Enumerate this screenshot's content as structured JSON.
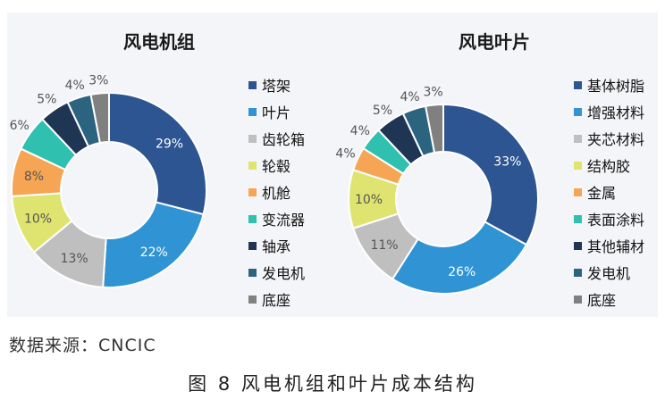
{
  "source_note": "数据来源：CNCIC",
  "figure_caption": "图 8  风电机组和叶片成本结构",
  "chart_data": [
    {
      "type": "pie",
      "donut": true,
      "title": "风电机组",
      "legend_position": "right",
      "categories": [
        "塔架",
        "叶片",
        "齿轮箱",
        "轮毂",
        "机舱",
        "变流器",
        "轴承",
        "发电机",
        "底座"
      ],
      "values": [
        29,
        22,
        13,
        10,
        8,
        6,
        5,
        4,
        3
      ],
      "labels": [
        "29%",
        "22%",
        "13%",
        "10%",
        "8%",
        "6%",
        "5%",
        "4%",
        "3%"
      ],
      "colors": [
        "#2d5591",
        "#2f93d4",
        "#bfbfbf",
        "#dfe36f",
        "#f5a553",
        "#2fc0b0",
        "#1f3554",
        "#2c6480",
        "#808080"
      ]
    },
    {
      "type": "pie",
      "donut": true,
      "title": "风电叶片",
      "legend_position": "right",
      "categories": [
        "基体树脂",
        "增强材料",
        "夹芯材料",
        "结构胶",
        "金属",
        "表面涂料",
        "其他辅材",
        "发电机",
        "底座"
      ],
      "values": [
        33,
        26,
        11,
        10,
        4,
        4,
        5,
        4,
        3
      ],
      "labels": [
        "33%",
        "26%",
        "11%",
        "10%",
        "4%",
        "4%",
        "5%",
        "4%",
        "3%"
      ],
      "colors": [
        "#2d5591",
        "#2f93d4",
        "#bfbfbf",
        "#dfe36f",
        "#f5a553",
        "#2fc0b0",
        "#1f3554",
        "#2c6480",
        "#808080"
      ]
    }
  ]
}
